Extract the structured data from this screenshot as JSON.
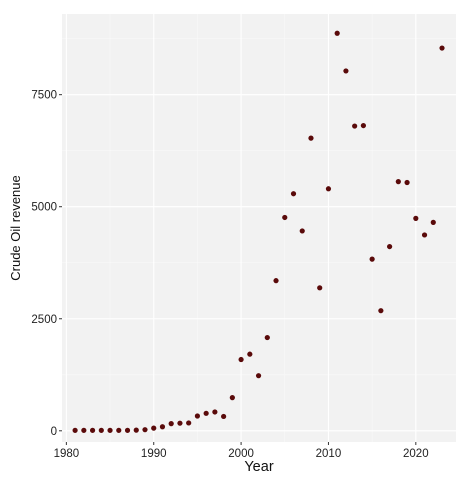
{
  "chart_data": {
    "type": "scatter",
    "title": "",
    "xlabel": "Year",
    "ylabel": "Crude Oil revenue",
    "xlim": [
      1979.5,
      2024.6
    ],
    "ylim": [
      -250,
      9300
    ],
    "x_ticks": [
      1980,
      1990,
      2000,
      2010,
      2020
    ],
    "y_ticks": [
      0,
      2500,
      5000,
      7500
    ],
    "grid": true,
    "legend": "none",
    "colors": {
      "panel": "#f2f2f2",
      "grid_major": "#ffffff",
      "grid_minor": "#f9f9f9",
      "point": "#5a0a0a"
    },
    "series": [
      {
        "x": [
          1981,
          1982,
          1983,
          1984,
          1985,
          1986,
          1987,
          1988,
          1989,
          1990,
          1991,
          1992,
          1993,
          1994,
          1995,
          1996,
          1997,
          1998,
          1999,
          2000,
          2001,
          2002,
          2003,
          2004,
          2005,
          2006,
          2007,
          2008,
          2009,
          2010,
          2011,
          2012,
          2013,
          2014,
          2015,
          2016,
          2017,
          2018,
          2019,
          2020,
          2021,
          2022,
          2023
        ],
        "y": [
          10,
          10,
          10,
          10,
          10,
          10,
          10,
          15,
          25,
          60,
          90,
          160,
          170,
          175,
          330,
          390,
          420,
          320,
          740,
          1590,
          1710,
          1230,
          2080,
          3350,
          4760,
          5290,
          4460,
          6530,
          3190,
          5400,
          8870,
          8030,
          6800,
          6810,
          3830,
          2680,
          4110,
          5560,
          5540,
          4740,
          4370,
          4650,
          8540
        ]
      }
    ]
  }
}
